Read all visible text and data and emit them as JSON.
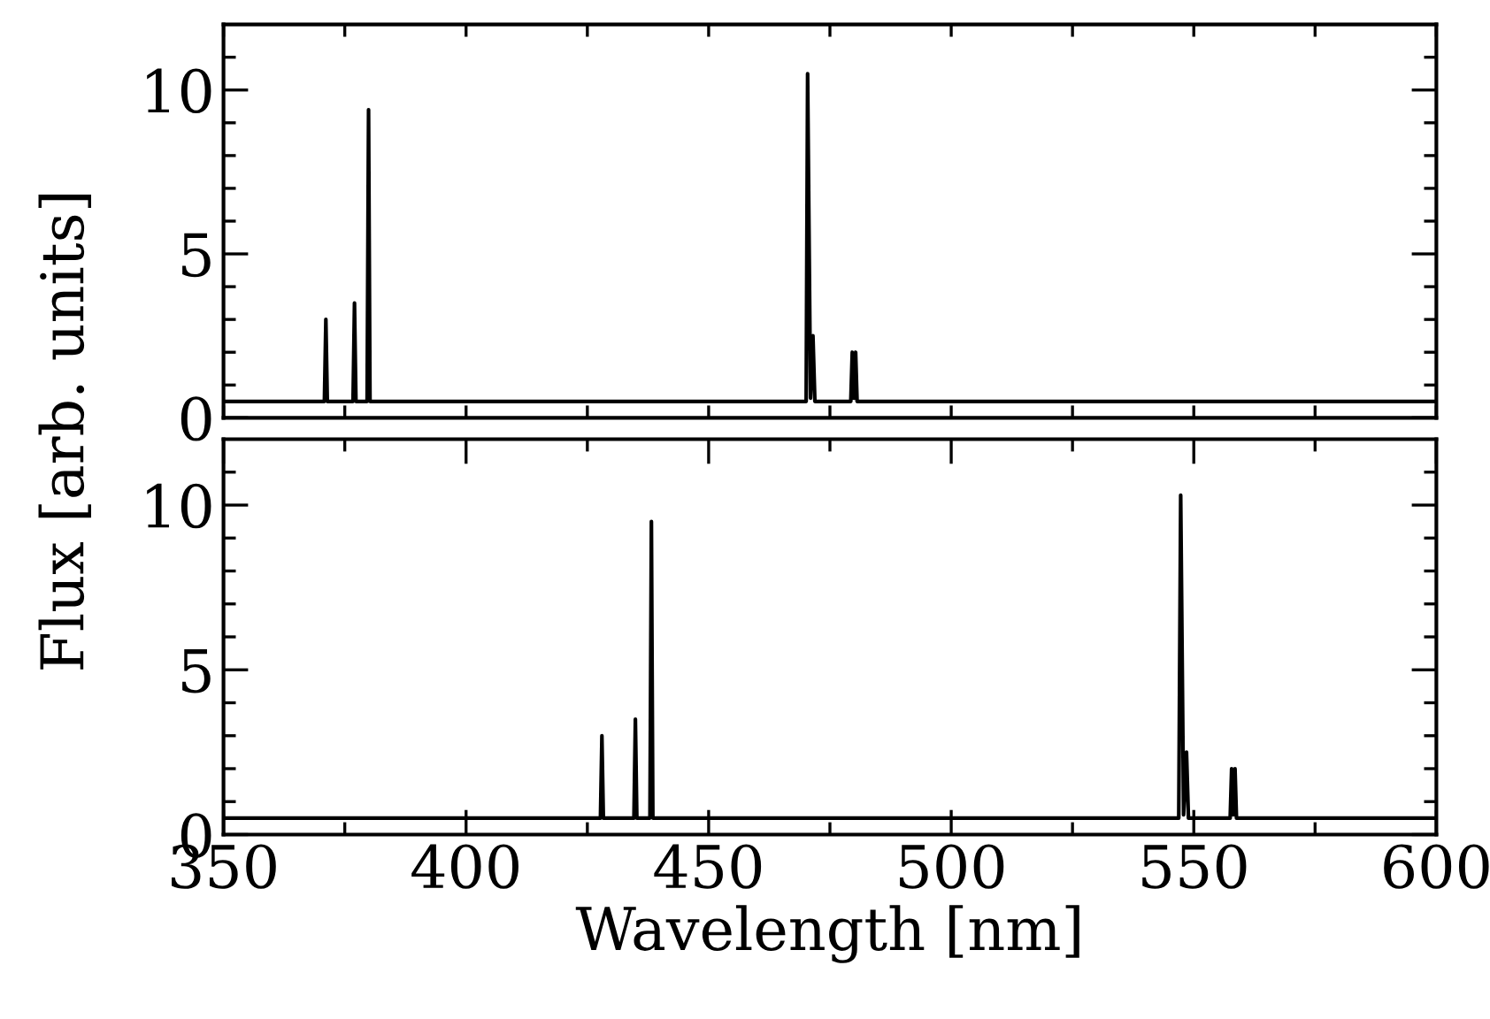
{
  "chart_data": [
    {
      "type": "line",
      "ylabel": "Flux [arb. units]",
      "tick_labels": "y",
      "xlim": [
        350,
        600
      ],
      "ylim": [
        0,
        12
      ],
      "xticks": [
        350,
        {
          "value": 375,
          "label": null
        },
        400,
        {
          "value": 425,
          "label": null
        },
        450,
        {
          "value": 475,
          "label": null
        },
        500,
        {
          "value": 525,
          "label": null
        },
        550,
        {
          "value": 575,
          "label": null
        },
        600
      ],
      "yticks": [
        0,
        {
          "value": 1,
          "label": null
        },
        {
          "value": 2,
          "label": null
        },
        {
          "value": 3,
          "label": null
        },
        {
          "value": 4,
          "label": null
        },
        5,
        {
          "value": 6,
          "label": null
        },
        {
          "value": 7,
          "label": null
        },
        {
          "value": 8,
          "label": null
        },
        {
          "value": 9,
          "label": null
        },
        10,
        {
          "value": 11,
          "label": null
        }
      ],
      "grid": false,
      "marker": "none",
      "line_style": "solid",
      "series": [
        {
          "color": "#000000",
          "x": [
            350,
            370.8,
            371.1,
            371.4,
            376.7,
            377.0,
            377.3,
            379.6,
            379.9,
            380.2,
            470.1,
            470.4,
            471.0,
            471.5,
            471.9,
            479.3,
            479.6,
            479.95,
            480.3,
            480.6,
            600
          ],
          "values": [
            0.5,
            0.5,
            3.0,
            0.5,
            0.5,
            3.5,
            0.5,
            0.5,
            9.4,
            0.5,
            0.5,
            10.5,
            0.6,
            2.5,
            0.5,
            0.5,
            2.0,
            0.6,
            2.0,
            0.5,
            0.5
          ]
        }
      ]
    },
    {
      "type": "line",
      "xlabel": "Wavelength [nm]",
      "xlim": [
        350,
        600
      ],
      "ylim": [
        0,
        12
      ],
      "xticks": [
        350,
        {
          "value": 375,
          "label": null
        },
        400,
        {
          "value": 425,
          "label": null
        },
        450,
        {
          "value": 475,
          "label": null
        },
        500,
        {
          "value": 525,
          "label": null
        },
        550,
        {
          "value": 575,
          "label": null
        },
        600
      ],
      "yticks": [
        0,
        {
          "value": 1,
          "label": null
        },
        {
          "value": 2,
          "label": null
        },
        {
          "value": 3,
          "label": null
        },
        {
          "value": 4,
          "label": null
        },
        5,
        {
          "value": 6,
          "label": null
        },
        {
          "value": 7,
          "label": null
        },
        {
          "value": 8,
          "label": null
        },
        {
          "value": 9,
          "label": null
        },
        10,
        {
          "value": 11,
          "label": null
        }
      ],
      "grid": false,
      "marker": "none",
      "line_style": "solid",
      "series": [
        {
          "color": "#000000",
          "x": [
            350,
            427.7,
            428.0,
            428.3,
            434.6,
            434.9,
            435.2,
            437.9,
            438.2,
            438.5,
            546.9,
            547.3,
            547.9,
            548.5,
            548.9,
            557.5,
            557.8,
            558.15,
            558.5,
            558.8,
            600
          ],
          "values": [
            0.5,
            0.5,
            3.0,
            0.5,
            0.5,
            3.5,
            0.5,
            0.5,
            9.5,
            0.5,
            0.5,
            10.3,
            0.6,
            2.5,
            0.5,
            0.5,
            2.0,
            0.6,
            2.0,
            0.5,
            0.5
          ]
        }
      ]
    }
  ]
}
